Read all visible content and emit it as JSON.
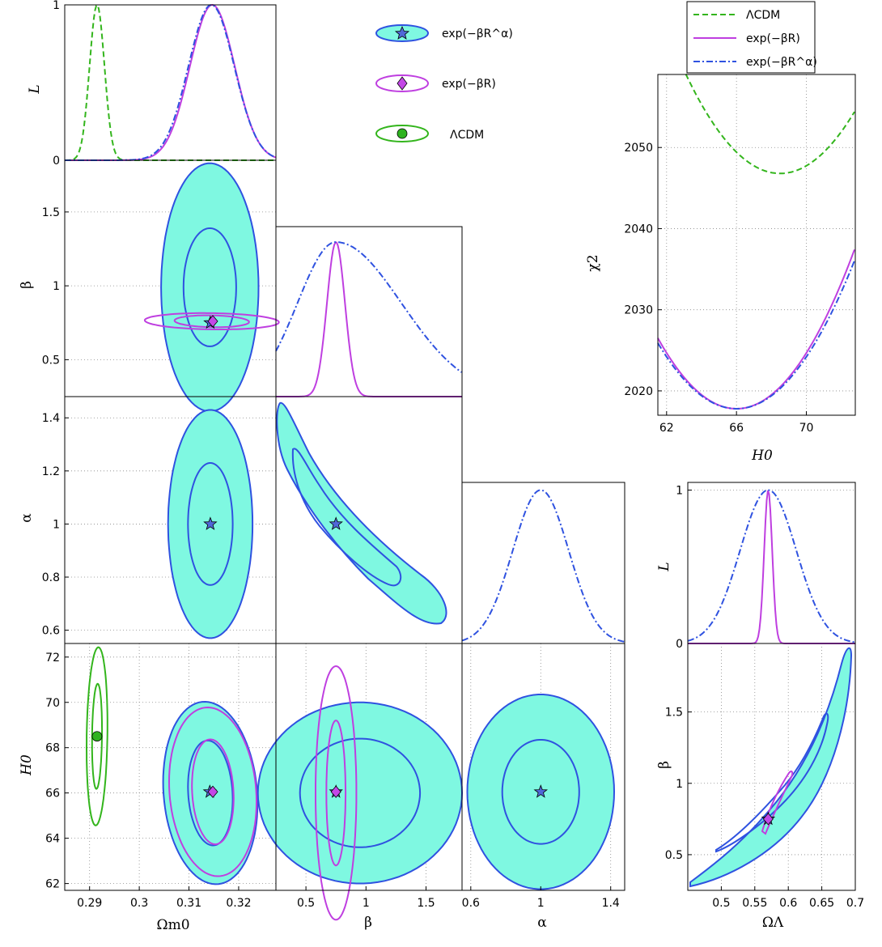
{
  "colors": {
    "fill": "#7ff8e1",
    "blue": "#2f52e0",
    "purple": "#bf3fe0",
    "green": "#33b51c",
    "star": "#5068d8",
    "diamond": "#c347e6",
    "dot": "#2fb320"
  },
  "chart_data": {
    "type": "triangle-plot",
    "legend_markers": [
      {
        "label": "exp(−βR^α)",
        "marker": "star",
        "color": "blue"
      },
      {
        "label": "exp(−βR)",
        "marker": "diamond",
        "color": "purple"
      },
      {
        "label": "ΛCDM",
        "marker": "circle",
        "color": "green"
      }
    ],
    "legend_lines": [
      {
        "label": "ΛCDM",
        "style": "dashed",
        "color": "green"
      },
      {
        "label": "exp(−βR)",
        "style": "solid",
        "color": "purple"
      },
      {
        "label": "exp(−βR^α)",
        "style": "dashdot",
        "color": "blue"
      }
    ],
    "axis_labels": {
      "L": "L",
      "beta": "β",
      "alpha": "α",
      "H0": "H0",
      "Om": "Ωm0",
      "OL": "ΩΛ",
      "chi2": "χ2"
    },
    "panels": [
      {
        "id": "Om-L",
        "xlim": [
          0.285,
          0.3275
        ],
        "ylim": [
          0,
          1
        ],
        "xticks": [],
        "yticks": [
          0,
          1
        ],
        "curves": [
          {
            "model": "LCDM",
            "style": "dashed",
            "mu": 0.2915,
            "sigma": 0.0015
          },
          {
            "model": "expBR",
            "style": "solid",
            "mu": 0.3147,
            "sigma": 0.0045
          },
          {
            "model": "expBRa",
            "style": "dashdot",
            "mu": 0.3145,
            "sigma": 0.0046
          }
        ]
      },
      {
        "id": "Om-beta",
        "xlim": [
          0.285,
          0.3275
        ],
        "ylim": [
          0.25,
          1.85
        ],
        "xticks": [],
        "yticks": [
          0.5,
          1,
          1.5
        ],
        "contours": [
          {
            "model": "expBRa",
            "center": [
              0.3142,
              0.99
            ],
            "inner": [
              0.0053,
              0.4
            ],
            "outer": [
              0.0098,
              0.84
            ],
            "tilt": 0
          },
          {
            "model": "expBR",
            "center": [
              0.3146,
              0.76
            ],
            "inner": [
              0.0075,
              0.04
            ],
            "outer": [
              0.0135,
              0.055
            ],
            "tilt": -0.12
          }
        ],
        "markers": [
          {
            "model": "expBRa",
            "marker": "star",
            "x": 0.3143,
            "y": 0.75
          },
          {
            "model": "expBR",
            "marker": "diamond",
            "x": 0.3148,
            "y": 0.76
          }
        ]
      },
      {
        "id": "Om-alpha",
        "xlim": [
          0.285,
          0.3275
        ],
        "ylim": [
          0.55,
          1.48
        ],
        "xticks": [],
        "yticks": [
          0.6,
          0.8,
          1,
          1.2,
          1.4
        ],
        "contours": [
          {
            "model": "expBRa",
            "center": [
              0.3143,
              1.0
            ],
            "inner": [
              0.0045,
              0.23
            ],
            "outer": [
              0.0085,
              0.43
            ],
            "tilt": 0
          }
        ],
        "markers": [
          {
            "model": "expBRa",
            "marker": "star",
            "x": 0.3143,
            "y": 1.0
          }
        ]
      },
      {
        "id": "Om-H0",
        "xlim": [
          0.285,
          0.3275
        ],
        "ylim": [
          61.7,
          72.6
        ],
        "xticks": [
          0.29,
          0.3,
          0.31,
          0.32
        ],
        "yticks": [
          62,
          64,
          66,
          68,
          70,
          72
        ],
        "xlabel": "Om",
        "contours": [
          {
            "model": "LCDM",
            "center": [
              0.2915,
              68.5
            ],
            "inner": [
              0.001,
              2.3
            ],
            "outer": [
              0.0021,
              3.9
            ],
            "tilt": 0.13
          },
          {
            "model": "expBRa",
            "center": [
              0.3143,
              66.0
            ],
            "inner": [
              0.0045,
              2.3
            ],
            "outer": [
              0.0095,
              4.0
            ],
            "tilt": -0.12
          },
          {
            "model": "expBR",
            "center": [
              0.3148,
              66.05
            ],
            "inner": [
              0.0042,
              2.3
            ],
            "outer": [
              0.0088,
              3.7
            ],
            "tilt": -0.12
          }
        ],
        "markers": [
          {
            "model": "LCDM",
            "marker": "circle",
            "x": 0.2915,
            "y": 68.5
          },
          {
            "model": "expBRa",
            "marker": "star",
            "x": 0.3142,
            "y": 66.05
          },
          {
            "model": "expBR",
            "marker": "diamond",
            "x": 0.3148,
            "y": 66.05
          }
        ]
      },
      {
        "id": "beta-L",
        "xlim": [
          0.25,
          1.8
        ],
        "ylim": [
          0,
          1.1
        ],
        "xticks": [],
        "yticks": [],
        "curves": [
          {
            "model": "expBR",
            "style": "solid",
            "mu": 0.75,
            "sigma": 0.075
          },
          {
            "model": "expBRa",
            "style": "dashdot",
            "mu": 0.75,
            "sigma": 0.32,
            "skew": 1.7
          }
        ]
      },
      {
        "id": "beta-alpha",
        "xlim": [
          0.25,
          1.8
        ],
        "ylim": [
          0.55,
          1.48
        ],
        "xticks": [],
        "yticks": [],
        "contours": [
          {
            "model": "expBRa",
            "band": true,
            "center": [
              0.8,
              1.0
            ]
          }
        ],
        "markers": [
          {
            "model": "expBRa",
            "marker": "star",
            "x": 0.75,
            "y": 1.0
          }
        ]
      },
      {
        "id": "beta-H0",
        "xlim": [
          0.25,
          1.8
        ],
        "ylim": [
          61.7,
          72.6
        ],
        "xticks": [
          0.5,
          1,
          1.5
        ],
        "yticks": [],
        "xlabel": "beta",
        "contours": [
          {
            "model": "expBRa",
            "center": [
              0.95,
              66.0
            ],
            "inner": [
              0.5,
              2.4
            ],
            "outer": [
              0.85,
              4.0
            ],
            "tilt": 0
          },
          {
            "model": "expBR",
            "center": [
              0.75,
              66.0
            ],
            "inner": [
              0.08,
              3.2
            ],
            "outer": [
              0.17,
              5.6
            ],
            "tilt": 0
          }
        ],
        "markers": [
          {
            "model": "expBRa",
            "marker": "star",
            "x": 0.75,
            "y": 66.05
          },
          {
            "model": "expBR",
            "marker": "diamond",
            "x": 0.75,
            "y": 66.05
          }
        ]
      },
      {
        "id": "alpha-L",
        "xlim": [
          0.55,
          1.48
        ],
        "ylim": [
          0,
          1.05
        ],
        "xticks": [],
        "yticks": [],
        "curves": [
          {
            "model": "expBRa",
            "style": "dashdot",
            "mu": 1.0,
            "sigma": 0.16
          }
        ]
      },
      {
        "id": "alpha-H0",
        "xlim": [
          0.55,
          1.48
        ],
        "ylim": [
          61.7,
          72.6
        ],
        "xticks": [
          0.6,
          1,
          1.4
        ],
        "yticks": [],
        "xlabel": "alpha",
        "contours": [
          {
            "model": "expBRa",
            "center": [
              1.0,
              66.05
            ],
            "inner": [
              0.22,
              2.3
            ],
            "outer": [
              0.42,
              4.3
            ],
            "tilt": 0
          }
        ],
        "markers": [
          {
            "model": "expBRa",
            "marker": "star",
            "x": 1.0,
            "y": 66.05
          }
        ]
      },
      {
        "id": "H0-chi2",
        "xlim": [
          61.5,
          72.8
        ],
        "ylim": [
          2017,
          2059
        ],
        "xticks": [
          62,
          66,
          70
        ],
        "yticks": [
          2020,
          2030,
          2040,
          2050
        ],
        "xlabel": "H0",
        "ylabel": "chi2",
        "curves": [
          {
            "model": "LCDM",
            "style": "dashed",
            "min_x": 68.5,
            "min_y": 2046.8,
            "k": 0.42
          },
          {
            "model": "expBR",
            "style": "solid",
            "min_x": 66.0,
            "min_y": 2017.8,
            "k": 0.43
          },
          {
            "model": "expBRa",
            "style": "dashdot",
            "min_x": 66.0,
            "min_y": 2017.8,
            "k": 0.4
          }
        ]
      },
      {
        "id": "OL-L",
        "xlim": [
          0.45,
          0.7
        ],
        "ylim": [
          0,
          1.05
        ],
        "xticks": [],
        "yticks": [
          0,
          1
        ],
        "ylabel": "L",
        "curves": [
          {
            "model": "expBR",
            "style": "solid",
            "mu": 0.57,
            "sigma": 0.006
          },
          {
            "model": "expBRa",
            "style": "dashdot",
            "mu": 0.57,
            "sigma": 0.042
          }
        ]
      },
      {
        "id": "OL-beta",
        "xlim": [
          0.45,
          0.7
        ],
        "ylim": [
          0.25,
          1.98
        ],
        "xticks": [
          0.5,
          0.55,
          0.6,
          0.65,
          0.7
        ],
        "yticks": [
          0.5,
          1,
          1.5
        ],
        "xlabel": "OL",
        "ylabel": "beta",
        "contours": [
          {
            "model": "expBRa",
            "band": true
          },
          {
            "model": "expBR",
            "segment": true
          }
        ],
        "markers": [
          {
            "model": "expBRa",
            "marker": "star",
            "x": 0.57,
            "y": 0.75
          },
          {
            "model": "expBR",
            "marker": "diamond",
            "x": 0.57,
            "y": 0.75
          }
        ]
      }
    ]
  }
}
